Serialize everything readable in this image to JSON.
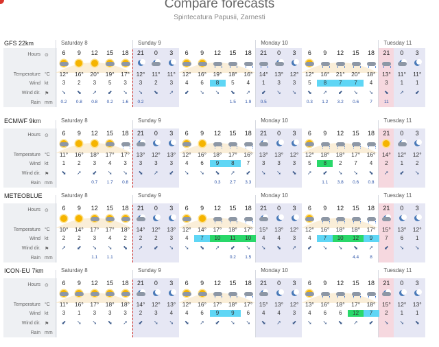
{
  "page": {
    "title": "Compare forecasts",
    "subtitle": "Spintecatura Papusii, Zarnesti"
  },
  "row_labels": [
    {
      "name": "Hours",
      "unit": "⊙"
    },
    {
      "name": "Temperature",
      "unit": "°C"
    },
    {
      "name": "Wind",
      "unit": "kt"
    },
    {
      "name": "Wind dir.",
      "unit": "⚑"
    },
    {
      "name": "Rain",
      "unit": "mm"
    }
  ],
  "days": [
    "Saturday 8",
    "Sunday 9",
    "Monday 10",
    "Tuesday 11"
  ],
  "hours": [
    "6",
    "9",
    "12",
    "15",
    "18",
    "21",
    "0",
    "3",
    "6",
    "9",
    "12",
    "15",
    "18",
    "21",
    "0",
    "3",
    "6",
    "9",
    "12",
    "15",
    "18",
    "21",
    "0",
    "3"
  ],
  "colors": {
    "night_band": "#e6e7f4",
    "now_band": "#f8d5db",
    "label_bg": "#eef0f3",
    "wind_cyan": "#5fd6f5",
    "wind_green": "#29d86a",
    "rain": "#2850a6"
  },
  "models": [
    {
      "name": "GFS 22km",
      "icons": [
        "sun-cloud",
        "sun",
        "sun",
        "sun-cloud",
        "sun-cloud",
        "moon",
        "moon-cloud",
        "moon",
        "sun-cloud",
        "sun-cloud",
        "rain",
        "rain",
        "rain",
        "rain",
        "moon-cloud",
        "moon",
        "sun-cloud",
        "rain",
        "rain",
        "rain",
        "rain",
        "rain",
        "moon-cloud",
        "moon"
      ],
      "temps": [
        "12°",
        "16°",
        "20°",
        "19°",
        "17°",
        "12°",
        "11°",
        "11°",
        "12°",
        "16°",
        "19°",
        "18°",
        "16°",
        "14°",
        "13°",
        "12°",
        "12°",
        "16°",
        "21°",
        "20°",
        "18°",
        "13°",
        "11°",
        "11°"
      ],
      "wind": [
        "3",
        "2",
        "3",
        "5",
        "3",
        "3",
        "2",
        "3",
        "4",
        "6",
        "8",
        "5",
        "4",
        "1",
        "3",
        "3",
        "5",
        "8",
        "7",
        "7",
        "4",
        "3",
        "1",
        "1"
      ],
      "wind_level": [
        0,
        0,
        0,
        0,
        0,
        0,
        0,
        0,
        0,
        0,
        1,
        0,
        0,
        0,
        0,
        0,
        0,
        1,
        1,
        1,
        0,
        0,
        0,
        0
      ],
      "rain": [
        "0.2",
        "0.8",
        "0.8",
        "0.2",
        "1.6",
        "0.2",
        "",
        "",
        "",
        "",
        "",
        "1.5",
        "1.9",
        "0.5",
        "",
        "",
        "0.3",
        "1.2",
        "3.2",
        "0.6",
        "7",
        "11",
        "",
        ""
      ]
    },
    {
      "name": "ECMWF 9km",
      "icons": [
        "sun-cloud",
        "sun",
        "sun",
        "sun-cloud",
        "rain",
        "moon-cloud",
        "moon",
        "moon",
        "sun-cloud",
        "sun",
        "rain",
        "rain",
        "rain",
        "moon-cloud",
        "moon",
        "moon",
        "sun-cloud",
        "rain",
        "rain",
        "rain",
        "rain",
        "sun",
        "moon-cloud",
        "moon"
      ],
      "temps": [
        "11°",
        "16°",
        "18°",
        "17°",
        "17°",
        "13°",
        "12°",
        "13°",
        "12°",
        "16°",
        "18°",
        "17°",
        "16°",
        "13°",
        "13°",
        "12°",
        "12°",
        "18°",
        "18°",
        "17°",
        "16°",
        "14°",
        "12°",
        "12°"
      ],
      "wind": [
        "1",
        "2",
        "3",
        "4",
        "3",
        "3",
        "3",
        "3",
        "4",
        "6",
        "9",
        "8",
        "7",
        "3",
        "3",
        "3",
        "5",
        "8",
        "2",
        "7",
        "4",
        "2",
        "1",
        "2"
      ],
      "wind_level": [
        0,
        0,
        0,
        0,
        0,
        0,
        0,
        0,
        0,
        0,
        1,
        1,
        0,
        0,
        0,
        0,
        0,
        2,
        0,
        0,
        0,
        0,
        0,
        0
      ],
      "rain": [
        "",
        "",
        "0.7",
        "1.7",
        "0.8",
        "",
        "",
        "",
        "",
        "",
        "0.3",
        "2.7",
        "3.3",
        "",
        "",
        "",
        "",
        "1.1",
        "3.8",
        "0.6",
        "0.8",
        "",
        "",
        ""
      ]
    },
    {
      "name": "METEOBLUE",
      "icons": [
        "sun",
        "sun",
        "sun-cloud",
        "sun-cloud",
        "sun-cloud",
        "moon-cloud",
        "moon",
        "moon",
        "sun-cloud",
        "sun",
        "rain",
        "rain",
        "rain",
        "moon-cloud",
        "moon",
        "moon",
        "sun-cloud",
        "rain",
        "rain",
        "rain",
        "rain",
        "moon-cloud",
        "moon",
        "moon"
      ],
      "temps": [
        "10°",
        "14°",
        "17°",
        "17°",
        "18°",
        "14°",
        "12°",
        "13°",
        "12°",
        "14°",
        "17°",
        "18°",
        "17°",
        "15°",
        "13°",
        "12°",
        "12°",
        "16°",
        "18°",
        "18°",
        "17°",
        "15°",
        "13°",
        "12°"
      ],
      "wind": [
        "2",
        "2",
        "3",
        "4",
        "2",
        "2",
        "2",
        "3",
        "4",
        "7",
        "10",
        "11",
        "10",
        "4",
        "4",
        "3",
        "4",
        "7",
        "10",
        "12",
        "9",
        "7",
        "6",
        "1"
      ],
      "wind_level": [
        0,
        0,
        0,
        0,
        0,
        0,
        0,
        0,
        0,
        1,
        2,
        2,
        2,
        0,
        0,
        0,
        0,
        1,
        2,
        2,
        1,
        0,
        0,
        0
      ],
      "rain": [
        "",
        "",
        "1.1",
        "1.1",
        "",
        "",
        "",
        "",
        "",
        "",
        "",
        "0.2",
        "1.5",
        "",
        "",
        "",
        "",
        "",
        "",
        "4.4",
        "8",
        "",
        "",
        ""
      ]
    },
    {
      "name": "ICON-EU 7km",
      "icons": [
        "sun-cloud",
        "sun-cloud",
        "sun-cloud",
        "sun-cloud",
        "sun-cloud",
        "moon-cloud",
        "moon",
        "moon",
        "sun-cloud",
        "sun-cloud",
        "rain",
        "rain",
        "rain",
        "moon-cloud",
        "moon",
        "moon",
        "sun-cloud",
        "rain",
        "rain",
        "rain",
        "rain",
        "moon-cloud",
        "moon",
        "moon"
      ],
      "temps": [
        "11°",
        "16°",
        "17°",
        "18°",
        "18°",
        "14°",
        "12°",
        "13°",
        "12°",
        "16°",
        "17°",
        "18°",
        "17°",
        "15°",
        "13°",
        "12°",
        "13°",
        "16°",
        "18°",
        "17°",
        "18°",
        "15°",
        "12°",
        "13°"
      ],
      "wind": [
        "3",
        "1",
        "3",
        "3",
        "3",
        "2",
        "3",
        "4",
        "4",
        "6",
        "9",
        "9",
        "6",
        "4",
        "4",
        "3",
        "4",
        "6",
        "6",
        "12",
        "7",
        "2",
        "1",
        "1"
      ],
      "wind_level": [
        0,
        0,
        0,
        0,
        0,
        0,
        0,
        0,
        0,
        0,
        1,
        1,
        0,
        0,
        0,
        0,
        0,
        0,
        0,
        2,
        1,
        0,
        0,
        0
      ],
      "rain": [
        "",
        "",
        "",
        "",
        "",
        "",
        "",
        "",
        "",
        "",
        "",
        "",
        "",
        "",
        "",
        "",
        "",
        "",
        "",
        "",
        "",
        "",
        "",
        ""
      ]
    }
  ]
}
